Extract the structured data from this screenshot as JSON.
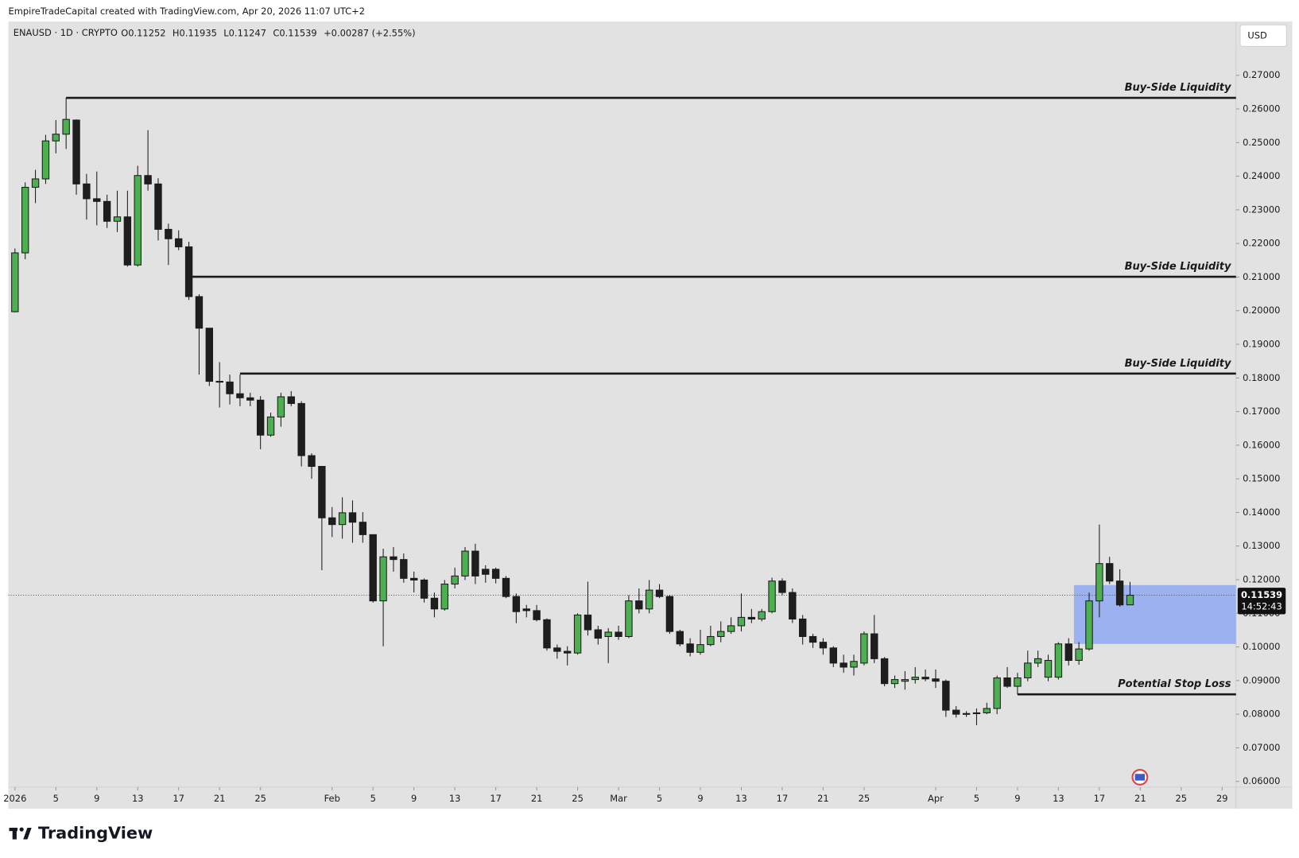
{
  "header": {
    "credit": "EmpireTradeCapital created with TradingView.com, Apr 20, 2026 11:07 UTC+2"
  },
  "branding": "TradingView",
  "chart_data": {
    "type": "candlestick",
    "symbol": "ENAUSD · 1D · CRYPTO",
    "ohlc_labels": [
      "O",
      "H",
      "L",
      "C"
    ],
    "change": "+0.00287 (+2.55%)",
    "currency": "USD",
    "countdown": "14:52:43",
    "up_color": "#4caf50",
    "down_color": "#1e1e1e",
    "x": [
      "2026-01-01",
      "2026-01-02",
      "2026-01-03",
      "2026-01-04",
      "2026-01-05",
      "2026-01-06",
      "2026-01-07",
      "2026-01-08",
      "2026-01-09",
      "2026-01-10",
      "2026-01-11",
      "2026-01-12",
      "2026-01-13",
      "2026-01-14",
      "2026-01-15",
      "2026-01-16",
      "2026-01-17",
      "2026-01-18",
      "2026-01-19",
      "2026-01-20",
      "2026-01-21",
      "2026-01-22",
      "2026-01-23",
      "2026-01-24",
      "2026-01-25",
      "2026-01-26",
      "2026-01-27",
      "2026-01-28",
      "2026-01-29",
      "2026-01-30",
      "2026-01-31",
      "2026-02-01",
      "2026-02-02",
      "2026-02-03",
      "2026-02-04",
      "2026-02-05",
      "2026-02-06",
      "2026-02-07",
      "2026-02-08",
      "2026-02-09",
      "2026-02-10",
      "2026-02-11",
      "2026-02-12",
      "2026-02-13",
      "2026-02-14",
      "2026-02-15",
      "2026-02-16",
      "2026-02-17",
      "2026-02-18",
      "2026-02-19",
      "2026-02-20",
      "2026-02-21",
      "2026-02-22",
      "2026-02-23",
      "2026-02-24",
      "2026-02-25",
      "2026-02-26",
      "2026-02-27",
      "2026-02-28",
      "2026-03-01",
      "2026-03-02",
      "2026-03-03",
      "2026-03-04",
      "2026-03-05",
      "2026-03-06",
      "2026-03-07",
      "2026-03-08",
      "2026-03-09",
      "2026-03-10",
      "2026-03-11",
      "2026-03-12",
      "2026-03-13",
      "2026-03-14",
      "2026-03-15",
      "2026-03-16",
      "2026-03-17",
      "2026-03-18",
      "2026-03-19",
      "2026-03-20",
      "2026-03-21",
      "2026-03-22",
      "2026-03-23",
      "2026-03-24",
      "2026-03-25",
      "2026-03-26",
      "2026-03-27",
      "2026-03-28",
      "2026-03-29",
      "2026-03-30",
      "2026-03-31",
      "2026-04-01",
      "2026-04-02",
      "2026-04-03",
      "2026-04-04",
      "2026-04-05",
      "2026-04-06",
      "2026-04-07",
      "2026-04-08",
      "2026-04-09",
      "2026-04-10",
      "2026-04-11",
      "2026-04-12",
      "2026-04-13",
      "2026-04-14",
      "2026-04-15",
      "2026-04-16",
      "2026-04-17",
      "2026-04-18",
      "2026-04-19",
      "2026-04-20"
    ],
    "open": [
      0.1997,
      0.2172,
      0.2367,
      0.2392,
      0.2505,
      0.2525,
      0.2567,
      0.2377,
      0.2333,
      0.2325,
      0.2266,
      0.2279,
      0.2136,
      0.2402,
      0.2377,
      0.2242,
      0.2214,
      0.219,
      0.2042,
      0.1948,
      0.179,
      0.1788,
      0.1753,
      0.1741,
      0.1734,
      0.163,
      0.1684,
      0.1744,
      0.1724,
      0.1569,
      0.1537,
      0.1384,
      0.1364,
      0.1399,
      0.1371,
      0.1334,
      0.1137,
      0.1268,
      0.126,
      0.1204,
      0.1199,
      0.1145,
      0.1113,
      0.1187,
      0.1211,
      0.1285,
      0.1231,
      0.1231,
      0.1204,
      0.115,
      0.1113,
      0.1108,
      0.1081,
      0.0997,
      0.0987,
      0.0982,
      0.1095,
      0.1051,
      0.1031,
      0.1044,
      0.1031,
      0.1137,
      0.1113,
      0.1169,
      0.115,
      0.1046,
      0.1009,
      0.0984,
      0.1007,
      0.1031,
      0.1046,
      0.1063,
      0.1088,
      0.1083,
      0.1105,
      0.1196,
      0.1162,
      0.1083,
      0.1031,
      0.1014,
      0.0997,
      0.0952,
      0.094,
      0.0952,
      0.1039,
      0.0965,
      0.0891,
      0.0898,
      0.0903,
      0.091,
      0.0905,
      0.0898,
      0.0812,
      0.08,
      0.0802,
      0.0804,
      0.0817,
      0.0908,
      0.0883,
      0.0908,
      0.0952,
      0.091,
      0.091,
      0.1009,
      0.096,
      0.0994,
      0.1137,
      0.1248,
      0.1196,
      0.11252
    ],
    "high": [
      0.2185,
      0.2382,
      0.2419,
      0.2523,
      0.2567,
      0.2633,
      0.2569,
      0.2407,
      0.2414,
      0.2345,
      0.2357,
      0.2357,
      0.2431,
      0.2537,
      0.2394,
      0.2259,
      0.2239,
      0.2205,
      0.2049,
      0.1948,
      0.1847,
      0.181,
      0.181,
      0.1756,
      0.1746,
      0.1697,
      0.1756,
      0.1761,
      0.1731,
      0.1576,
      0.1537,
      0.1416,
      0.1445,
      0.1436,
      0.1401,
      0.1334,
      0.1292,
      0.1297,
      0.1278,
      0.1224,
      0.1204,
      0.1162,
      0.1199,
      0.1236,
      0.1297,
      0.1307,
      0.1243,
      0.1236,
      0.1211,
      0.1159,
      0.1125,
      0.1125,
      0.1085,
      0.1007,
      0.1002,
      0.11,
      0.1194,
      0.1063,
      0.1056,
      0.1063,
      0.1154,
      0.1174,
      0.1199,
      0.1187,
      0.1154,
      0.1051,
      0.1026,
      0.1051,
      0.1063,
      0.1076,
      0.1088,
      0.1159,
      0.1113,
      0.1113,
      0.1206,
      0.1204,
      0.1174,
      0.1095,
      0.1039,
      0.1026,
      0.1002,
      0.0977,
      0.0977,
      0.1046,
      0.1095,
      0.097,
      0.0915,
      0.0928,
      0.094,
      0.0933,
      0.0933,
      0.0903,
      0.0824,
      0.0809,
      0.0817,
      0.0834,
      0.0915,
      0.094,
      0.0923,
      0.0989,
      0.0989,
      0.0977,
      0.1014,
      0.1026,
      0.1014,
      0.1162,
      0.1364,
      0.1268,
      0.1231,
      0.11935
    ],
    "low": [
      0.1995,
      0.2153,
      0.232,
      0.2377,
      0.2468,
      0.2481,
      0.2345,
      0.2271,
      0.2254,
      0.2246,
      0.2234,
      0.2131,
      0.2131,
      0.2357,
      0.2209,
      0.2136,
      0.218,
      0.2032,
      0.181,
      0.1776,
      0.1712,
      0.1721,
      0.1716,
      0.1716,
      0.1588,
      0.1625,
      0.1655,
      0.1716,
      0.1537,
      0.15,
      0.1228,
      0.1327,
      0.1322,
      0.131,
      0.131,
      0.1132,
      0.1002,
      0.1224,
      0.1191,
      0.1162,
      0.1132,
      0.1088,
      0.1108,
      0.1174,
      0.1199,
      0.1187,
      0.1191,
      0.1189,
      0.1145,
      0.1071,
      0.1088,
      0.1076,
      0.0989,
      0.0965,
      0.0945,
      0.0977,
      0.1034,
      0.1007,
      0.0952,
      0.1021,
      0.1026,
      0.11,
      0.11,
      0.1145,
      0.1039,
      0.1002,
      0.0972,
      0.0977,
      0.1002,
      0.1014,
      0.1039,
      0.1046,
      0.1071,
      0.1076,
      0.11,
      0.1154,
      0.1071,
      0.1007,
      0.0997,
      0.0977,
      0.094,
      0.0923,
      0.0915,
      0.0945,
      0.0952,
      0.0883,
      0.0878,
      0.0873,
      0.0891,
      0.0898,
      0.0878,
      0.0792,
      0.079,
      0.0792,
      0.0767,
      0.08,
      0.08,
      0.0878,
      0.0859,
      0.0898,
      0.094,
      0.0898,
      0.0903,
      0.0945,
      0.0947,
      0.0989,
      0.1088,
      0.1187,
      0.112,
      0.11247
    ],
    "close": [
      0.2172,
      0.2367,
      0.2392,
      0.2505,
      0.2525,
      0.2569,
      0.2377,
      0.2333,
      0.2325,
      0.2266,
      0.2279,
      0.2136,
      0.2402,
      0.2377,
      0.2242,
      0.2214,
      0.219,
      0.2042,
      0.1948,
      0.179,
      0.1788,
      0.1753,
      0.1741,
      0.1734,
      0.163,
      0.1684,
      0.1744,
      0.1724,
      0.1569,
      0.1537,
      0.1384,
      0.1364,
      0.1399,
      0.1371,
      0.1334,
      0.1137,
      0.1268,
      0.126,
      0.1204,
      0.1199,
      0.1145,
      0.1113,
      0.1187,
      0.1211,
      0.1285,
      0.1211,
      0.1216,
      0.1204,
      0.115,
      0.1105,
      0.1108,
      0.1081,
      0.0997,
      0.0987,
      0.0982,
      0.1095,
      0.1051,
      0.1026,
      0.1044,
      0.1031,
      0.1137,
      0.1113,
      0.1169,
      0.115,
      0.1046,
      0.1009,
      0.0984,
      0.1007,
      0.1031,
      0.1046,
      0.1063,
      0.1088,
      0.1083,
      0.1105,
      0.1196,
      0.1162,
      0.1083,
      0.1031,
      0.1014,
      0.0997,
      0.0952,
      0.094,
      0.0957,
      0.1039,
      0.0965,
      0.0891,
      0.0903,
      0.0903,
      0.091,
      0.0905,
      0.0898,
      0.0812,
      0.08,
      0.0802,
      0.0804,
      0.0817,
      0.0908,
      0.0883,
      0.0908,
      0.0952,
      0.0965,
      0.096,
      0.1009,
      0.096,
      0.0994,
      0.1137,
      0.1248,
      0.1196,
      0.1125,
      0.11539
    ],
    "xlim": [
      "2026-01-01",
      "2026-04-30"
    ],
    "xticks": [
      {
        "value": "2026-01-01",
        "label": "2026"
      },
      {
        "value": "2026-01-05",
        "label": "5"
      },
      {
        "value": "2026-01-09",
        "label": "9"
      },
      {
        "value": "2026-01-13",
        "label": "13"
      },
      {
        "value": "2026-01-17",
        "label": "17"
      },
      {
        "value": "2026-01-21",
        "label": "21"
      },
      {
        "value": "2026-01-25",
        "label": "25"
      },
      {
        "value": "2026-02-01",
        "label": "Feb"
      },
      {
        "value": "2026-02-05",
        "label": "5"
      },
      {
        "value": "2026-02-09",
        "label": "9"
      },
      {
        "value": "2026-02-13",
        "label": "13"
      },
      {
        "value": "2026-02-17",
        "label": "17"
      },
      {
        "value": "2026-02-21",
        "label": "21"
      },
      {
        "value": "2026-02-25",
        "label": "25"
      },
      {
        "value": "2026-03-01",
        "label": "Mar"
      },
      {
        "value": "2026-03-05",
        "label": "5"
      },
      {
        "value": "2026-03-09",
        "label": "9"
      },
      {
        "value": "2026-03-13",
        "label": "13"
      },
      {
        "value": "2026-03-17",
        "label": "17"
      },
      {
        "value": "2026-03-21",
        "label": "21"
      },
      {
        "value": "2026-03-25",
        "label": "25"
      },
      {
        "value": "2026-04-01",
        "label": "Apr"
      },
      {
        "value": "2026-04-05",
        "label": "5"
      },
      {
        "value": "2026-04-09",
        "label": "9"
      },
      {
        "value": "2026-04-13",
        "label": "13"
      },
      {
        "value": "2026-04-17",
        "label": "17"
      },
      {
        "value": "2026-04-21",
        "label": "21"
      },
      {
        "value": "2026-04-25",
        "label": "25"
      },
      {
        "value": "2026-04-29",
        "label": "29"
      }
    ],
    "ylim": [
      0.0583,
      0.286
    ],
    "yticks": [
      {
        "value": 0.06,
        "label": "0.06000"
      },
      {
        "value": 0.07,
        "label": "0.07000"
      },
      {
        "value": 0.08,
        "label": "0.08000"
      },
      {
        "value": 0.09,
        "label": "0.09000"
      },
      {
        "value": 0.1,
        "label": "0.10000"
      },
      {
        "value": 0.11,
        "label": "0.11000"
      },
      {
        "value": 0.12,
        "label": "0.12000"
      },
      {
        "value": 0.13,
        "label": "0.13000"
      },
      {
        "value": 0.14,
        "label": "0.14000"
      },
      {
        "value": 0.15,
        "label": "0.15000"
      },
      {
        "value": 0.16,
        "label": "0.16000"
      },
      {
        "value": 0.17,
        "label": "0.17000"
      },
      {
        "value": 0.18,
        "label": "0.18000"
      },
      {
        "value": 0.19,
        "label": "0.19000"
      },
      {
        "value": 0.2,
        "label": "0.20000"
      },
      {
        "value": 0.21,
        "label": "0.21000"
      },
      {
        "value": 0.22,
        "label": "0.22000"
      },
      {
        "value": 0.23,
        "label": "0.23000"
      },
      {
        "value": 0.24,
        "label": "0.24000"
      },
      {
        "value": 0.25,
        "label": "0.25000"
      },
      {
        "value": 0.26,
        "label": "0.26000"
      },
      {
        "value": 0.27,
        "label": "0.27000"
      }
    ],
    "grid": false,
    "levels": [
      {
        "label": "Buy-Side Liquidity",
        "value": 0.2633,
        "start": "2026-01-06"
      },
      {
        "label": "Buy-Side Liquidity",
        "value": 0.2101,
        "start": "2026-01-18"
      },
      {
        "label": "Buy-Side Liquidity",
        "value": 0.1813,
        "start": "2026-01-23"
      },
      {
        "label": "Potential Stop Loss",
        "value": 0.0859,
        "start": "2026-04-09"
      }
    ],
    "zone": {
      "start": "2026-04-15",
      "low": 0.1009,
      "high": 0.1184,
      "color": "#8ea8f2"
    }
  }
}
